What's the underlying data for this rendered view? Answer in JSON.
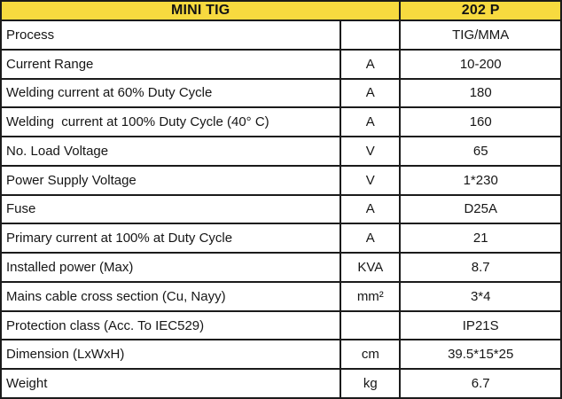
{
  "colors": {
    "header_bg": "#f7da3f",
    "border": "#1b1b1b",
    "text": "#161616",
    "row_bg": "#ffffff"
  },
  "chart_data": {
    "type": "table",
    "title": "MINI TIG",
    "model": "202 P",
    "columns": [
      "MINI TIG",
      "",
      "202 P"
    ],
    "layout": {
      "header_background": "#f7da3f",
      "grid": "on",
      "label_align": "left",
      "unit_align": "center",
      "value_align": "center"
    },
    "rows": [
      {
        "label": "Process",
        "unit": "",
        "value": "TIG/MMA"
      },
      {
        "label": "Current Range",
        "unit": "A",
        "value": "10-200"
      },
      {
        "label": "Welding current at 60% Duty Cycle",
        "unit": "A",
        "value": "180"
      },
      {
        "label": "Welding  current at 100% Duty Cycle (40° C)",
        "unit": "A",
        "value": "160"
      },
      {
        "label": "No. Load Voltage",
        "unit": "V",
        "value": "65"
      },
      {
        "label": "Power Supply Voltage",
        "unit": "V",
        "value": "1*230"
      },
      {
        "label": "Fuse",
        "unit": "A",
        "value": "D25A"
      },
      {
        "label": "Primary current at 100% at Duty Cycle",
        "unit": "A",
        "value": "21"
      },
      {
        "label": "Installed power (Max)",
        "unit": "KVA",
        "value": "8.7"
      },
      {
        "label": "Mains cable cross section (Cu, Nayy)",
        "unit": "mm²",
        "value": "3*4"
      },
      {
        "label": "Protection class (Acc. To IEC529)",
        "unit": "",
        "value": "IP21S"
      },
      {
        "label": "Dimension (LxWxH)",
        "unit": "cm",
        "value": "39.5*15*25"
      },
      {
        "label": "Weight",
        "unit": "kg",
        "value": "6.7"
      }
    ]
  }
}
